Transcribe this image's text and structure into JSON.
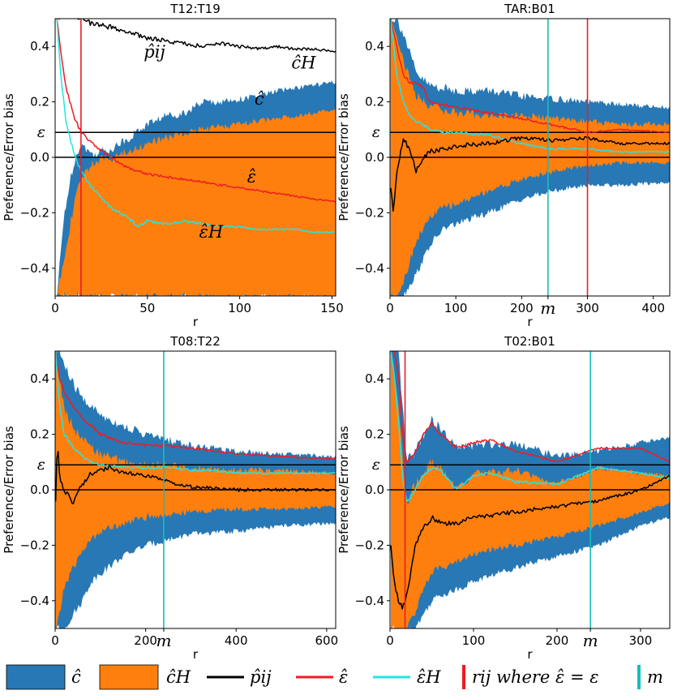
{
  "colors": {
    "c_hat": "#2878b5",
    "c_hat_H": "#ff7f0e",
    "p_ij": "#000000",
    "eps_hat": "#ed1c24",
    "eps_hat_H": "#22e5e5",
    "r_ij_line": "#ed1c24",
    "m_line": "#17bebb"
  },
  "legend": [
    {
      "kind": "patch",
      "color": "c_hat",
      "label": "ĉ"
    },
    {
      "kind": "patch",
      "color": "c_hat_H",
      "label": "ĉH"
    },
    {
      "kind": "line",
      "color": "p_ij",
      "label": "p̂ij"
    },
    {
      "kind": "line",
      "color": "eps_hat",
      "label": "ε̂"
    },
    {
      "kind": "line",
      "color": "eps_hat_H",
      "label": "ε̂H"
    },
    {
      "kind": "bar",
      "color": "r_ij_line",
      "label": "rij where ε̂ = ε"
    },
    {
      "kind": "bar",
      "color": "m_line",
      "label": "m"
    }
  ],
  "chart_data": [
    {
      "type": "line",
      "title": "T12:T19",
      "xlabel": "r",
      "ylabel": "Preference/Error bias",
      "xlim": [
        0,
        152
      ],
      "ylim": [
        -0.5,
        0.5
      ],
      "xticks": [
        0,
        50,
        100,
        150
      ],
      "yticks": [
        -0.4,
        -0.2,
        0.0,
        0.2,
        0.4
      ],
      "epsilon": 0.09,
      "epsilon_label": "ε",
      "vlines": [
        {
          "x": 14,
          "color": "r_ij_line"
        }
      ],
      "annotations": [
        {
          "text": "p̂ij",
          "x": 48,
          "y": 0.36
        },
        {
          "text": "ĉH",
          "x": 128,
          "y": 0.32
        },
        {
          "text": "ĉ",
          "x": 108,
          "y": 0.19
        },
        {
          "text": "ε̂",
          "x": 104,
          "y": -0.09
        },
        {
          "text": "ε̂H",
          "x": 78,
          "y": -0.29
        }
      ],
      "series": {
        "p_ij": {
          "x": [
            2,
            5,
            10,
            15,
            20,
            30,
            40,
            50,
            60,
            70,
            80,
            90,
            100,
            110,
            120,
            130,
            140,
            152
          ],
          "y": [
            0.5,
            0.52,
            0.51,
            0.5,
            0.48,
            0.47,
            0.45,
            0.43,
            0.42,
            0.41,
            0.4,
            0.41,
            0.4,
            0.39,
            0.4,
            0.39,
            0.39,
            0.38
          ]
        },
        "eps_hat": {
          "x": [
            1,
            3,
            6,
            10,
            14,
            20,
            30,
            40,
            45,
            50,
            60,
            70,
            80,
            90,
            100,
            110,
            120,
            130,
            140,
            152
          ],
          "y": [
            0.5,
            0.38,
            0.25,
            0.15,
            0.09,
            0.05,
            0.0,
            -0.04,
            -0.05,
            -0.06,
            -0.07,
            -0.08,
            -0.09,
            -0.1,
            -0.11,
            -0.12,
            -0.13,
            -0.14,
            -0.15,
            -0.16
          ]
        },
        "eps_hat_H": {
          "x": [
            1,
            3,
            6,
            10,
            14,
            20,
            30,
            40,
            45,
            50,
            60,
            70,
            80,
            90,
            100,
            110,
            120,
            130,
            140,
            152
          ],
          "y": [
            0.5,
            0.3,
            0.12,
            0.02,
            -0.05,
            -0.11,
            -0.18,
            -0.22,
            -0.25,
            -0.23,
            -0.24,
            -0.23,
            -0.24,
            -0.25,
            -0.25,
            -0.26,
            -0.26,
            -0.26,
            -0.27,
            -0.27
          ]
        },
        "c_hat_band": {
          "x": [
            1,
            5,
            10,
            14,
            20,
            30,
            40,
            50,
            60,
            70,
            80,
            90,
            100,
            110,
            120,
            130,
            140,
            152
          ],
          "lower": [
            -0.5,
            -0.5,
            -0.5,
            -0.5,
            -0.5,
            -0.5,
            -0.5,
            -0.5,
            -0.5,
            -0.5,
            -0.5,
            -0.5,
            -0.5,
            -0.5,
            -0.5,
            -0.5,
            -0.5,
            -0.5
          ],
          "upper": [
            -0.5,
            -0.2,
            -0.02,
            0.05,
            0.01,
            0.03,
            0.07,
            0.12,
            0.15,
            0.16,
            0.2,
            0.2,
            0.21,
            0.22,
            0.24,
            0.25,
            0.26,
            0.27
          ]
        },
        "c_hat_H_band": {
          "x": [
            1,
            5,
            10,
            14,
            20,
            30,
            40,
            50,
            60,
            70,
            80,
            90,
            100,
            110,
            120,
            130,
            140,
            152
          ],
          "lower": [
            -0.5,
            -0.5,
            -0.5,
            -0.5,
            -0.5,
            -0.5,
            -0.5,
            -0.5,
            -0.5,
            -0.5,
            -0.5,
            -0.5,
            -0.5,
            -0.5,
            -0.5,
            -0.5,
            -0.5,
            -0.5
          ],
          "upper": [
            -0.5,
            -0.35,
            -0.18,
            -0.08,
            -0.02,
            0.0,
            0.02,
            0.05,
            0.07,
            0.09,
            0.1,
            0.11,
            0.12,
            0.13,
            0.14,
            0.15,
            0.16,
            0.17
          ]
        }
      }
    },
    {
      "type": "line",
      "title": "TAR:B01",
      "xlabel": "r",
      "ylabel": "Preference/Error bias",
      "xlim": [
        0,
        425
      ],
      "ylim": [
        -0.5,
        0.5
      ],
      "xticks": [
        0,
        100,
        200,
        300,
        400
      ],
      "yticks": [
        -0.4,
        -0.2,
        0.0,
        0.2,
        0.4
      ],
      "epsilon": 0.09,
      "epsilon_label": "ε",
      "m_label": "m",
      "m_x": 240,
      "vlines": [
        {
          "x": 240,
          "color": "m_line"
        },
        {
          "x": 300,
          "color": "r_ij_line"
        }
      ],
      "series": {
        "p_ij": {
          "x": [
            1,
            5,
            10,
            15,
            20,
            25,
            30,
            40,
            50,
            60,
            80,
            100,
            150,
            200,
            250,
            300,
            350,
            425
          ],
          "y": [
            -0.1,
            -0.2,
            -0.05,
            0.0,
            0.07,
            0.05,
            0.02,
            -0.05,
            0.0,
            0.02,
            0.03,
            0.04,
            0.05,
            0.07,
            0.06,
            0.07,
            0.05,
            0.05
          ]
        },
        "eps_hat": {
          "x": [
            1,
            10,
            20,
            30,
            40,
            50,
            60,
            80,
            100,
            150,
            200,
            240,
            300,
            350,
            425
          ],
          "y": [
            0.5,
            0.4,
            0.3,
            0.27,
            0.27,
            0.25,
            0.2,
            0.19,
            0.18,
            0.16,
            0.14,
            0.12,
            0.09,
            0.1,
            0.09
          ]
        },
        "eps_hat_H": {
          "x": [
            1,
            10,
            20,
            30,
            40,
            50,
            60,
            80,
            100,
            150,
            200,
            240,
            300,
            350,
            425
          ],
          "y": [
            0.5,
            0.3,
            0.2,
            0.15,
            0.13,
            0.12,
            0.1,
            0.09,
            0.09,
            0.08,
            0.05,
            0.03,
            0.03,
            0.02,
            0.02
          ]
        },
        "c_hat_band": {
          "x": [
            1,
            10,
            20,
            40,
            60,
            80,
            100,
            150,
            200,
            250,
            300,
            350,
            425
          ],
          "lower": [
            -0.5,
            -0.5,
            -0.5,
            -0.42,
            -0.32,
            -0.26,
            -0.24,
            -0.2,
            -0.15,
            -0.12,
            -0.1,
            -0.1,
            -0.09
          ],
          "upper": [
            0.5,
            0.5,
            0.45,
            0.3,
            0.26,
            0.25,
            0.24,
            0.24,
            0.22,
            0.21,
            0.2,
            0.19,
            0.18
          ]
        },
        "c_hat_H_band": {
          "x": [
            1,
            10,
            20,
            40,
            60,
            80,
            100,
            150,
            200,
            250,
            300,
            350,
            425
          ],
          "lower": [
            -0.5,
            -0.5,
            -0.45,
            -0.3,
            -0.22,
            -0.18,
            -0.17,
            -0.12,
            -0.08,
            -0.05,
            -0.03,
            -0.02,
            -0.02
          ],
          "upper": [
            0.5,
            0.45,
            0.35,
            0.22,
            0.19,
            0.17,
            0.16,
            0.15,
            0.15,
            0.14,
            0.13,
            0.12,
            0.12
          ]
        }
      }
    },
    {
      "type": "line",
      "title": "T08:T22",
      "xlabel": "r",
      "ylabel": "Preference/Error bias",
      "xlim": [
        0,
        620
      ],
      "ylim": [
        -0.5,
        0.5
      ],
      "xticks": [
        0,
        200,
        400,
        600
      ],
      "yticks": [
        -0.4,
        -0.2,
        0.0,
        0.2,
        0.4
      ],
      "epsilon": 0.09,
      "epsilon_label": "ε",
      "m_label": "m",
      "m_x": 240,
      "vlines": [
        {
          "x": 240,
          "color": "m_line"
        }
      ],
      "series": {
        "p_ij": {
          "x": [
            1,
            5,
            10,
            20,
            30,
            40,
            50,
            60,
            80,
            100,
            120,
            150,
            200,
            250,
            300,
            400,
            500,
            620
          ],
          "y": [
            -0.05,
            0.17,
            0.05,
            0.0,
            -0.02,
            -0.05,
            0.0,
            0.02,
            0.06,
            0.07,
            0.08,
            0.06,
            0.05,
            0.03,
            0.01,
            0.0,
            0.0,
            0.0
          ]
        },
        "eps_hat": {
          "x": [
            1,
            10,
            20,
            40,
            60,
            80,
            100,
            150,
            200,
            250,
            300,
            350,
            400,
            500,
            620
          ],
          "y": [
            0.5,
            0.4,
            0.35,
            0.3,
            0.26,
            0.23,
            0.2,
            0.17,
            0.16,
            0.16,
            0.15,
            0.14,
            0.13,
            0.12,
            0.11
          ]
        },
        "eps_hat_H": {
          "x": [
            1,
            10,
            20,
            40,
            60,
            80,
            100,
            150,
            200,
            250,
            300,
            350,
            400,
            500,
            620
          ],
          "y": [
            0.5,
            0.3,
            0.2,
            0.15,
            0.12,
            0.1,
            0.09,
            0.08,
            0.08,
            0.08,
            0.07,
            0.07,
            0.06,
            0.06,
            0.06
          ]
        },
        "c_hat_band": {
          "x": [
            1,
            10,
            20,
            40,
            60,
            80,
            100,
            150,
            200,
            250,
            300,
            400,
            500,
            620
          ],
          "lower": [
            -0.5,
            -0.5,
            -0.5,
            -0.45,
            -0.4,
            -0.33,
            -0.3,
            -0.24,
            -0.2,
            -0.18,
            -0.16,
            -0.15,
            -0.13,
            -0.12
          ],
          "upper": [
            0.5,
            0.5,
            0.45,
            0.38,
            0.33,
            0.3,
            0.27,
            0.23,
            0.2,
            0.18,
            0.16,
            0.14,
            0.13,
            0.12
          ]
        },
        "c_hat_H_band": {
          "x": [
            1,
            10,
            20,
            40,
            60,
            80,
            100,
            150,
            200,
            250,
            300,
            400,
            500,
            620
          ],
          "lower": [
            -0.5,
            -0.45,
            -0.35,
            -0.28,
            -0.22,
            -0.18,
            -0.15,
            -0.12,
            -0.1,
            -0.09,
            -0.08,
            -0.07,
            -0.07,
            -0.06
          ]
        },
        "c_hat_H_band_upper": {
          "x": [
            1,
            10,
            20,
            40,
            60,
            80,
            100,
            150,
            200,
            250,
            300,
            400,
            500,
            620
          ],
          "upper": [
            0.5,
            0.4,
            0.3,
            0.22,
            0.18,
            0.15,
            0.13,
            0.1,
            0.09,
            0.09,
            0.08,
            0.07,
            0.07,
            0.06
          ]
        }
      }
    },
    {
      "type": "line",
      "title": "T02:B01",
      "xlabel": "r",
      "ylabel": "Preference/Error bias",
      "xlim": [
        0,
        335
      ],
      "ylim": [
        -0.5,
        0.5
      ],
      "xticks": [
        0,
        100,
        200,
        300
      ],
      "yticks": [
        -0.4,
        -0.2,
        0.0,
        0.2,
        0.4
      ],
      "epsilon": 0.09,
      "epsilon_label": "ε",
      "m_label": "m",
      "m_x": 240,
      "vlines": [
        {
          "x": 18,
          "color": "r_ij_line"
        },
        {
          "x": 240,
          "color": "m_line"
        }
      ],
      "series": {
        "p_ij": {
          "x": [
            1,
            5,
            10,
            15,
            20,
            25,
            30,
            40,
            50,
            60,
            80,
            100,
            150,
            200,
            250,
            300,
            335
          ],
          "y": [
            -0.2,
            -0.33,
            -0.4,
            -0.43,
            -0.38,
            -0.3,
            -0.2,
            -0.14,
            -0.1,
            -0.12,
            -0.12,
            -0.1,
            -0.08,
            -0.06,
            -0.04,
            0.0,
            0.05
          ]
        },
        "eps_hat": {
          "x": [
            1,
            5,
            10,
            15,
            20,
            30,
            40,
            50,
            60,
            80,
            100,
            120,
            150,
            200,
            250,
            300,
            335
          ],
          "y": [
            0.5,
            0.5,
            0.42,
            0.2,
            0.1,
            0.13,
            0.2,
            0.24,
            0.2,
            0.15,
            0.17,
            0.18,
            0.14,
            0.1,
            0.15,
            0.15,
            0.1
          ]
        },
        "eps_hat_H": {
          "x": [
            1,
            5,
            10,
            15,
            20,
            30,
            40,
            50,
            60,
            80,
            100,
            120,
            150,
            200,
            250,
            300,
            335
          ],
          "y": [
            0.5,
            0.42,
            0.25,
            0.05,
            -0.05,
            0.0,
            0.05,
            0.08,
            0.07,
            0.0,
            0.05,
            0.06,
            0.03,
            0.02,
            0.08,
            0.06,
            0.04
          ]
        },
        "c_hat_band": {
          "x": [
            1,
            10,
            20,
            30,
            40,
            50,
            60,
            80,
            100,
            150,
            200,
            250,
            300,
            335
          ],
          "lower": [
            -0.5,
            -0.5,
            -0.5,
            -0.5,
            -0.45,
            -0.4,
            -0.38,
            -0.36,
            -0.33,
            -0.28,
            -0.24,
            -0.2,
            -0.13,
            -0.1
          ],
          "upper": [
            0.5,
            0.5,
            0.1,
            0.14,
            0.2,
            0.25,
            0.22,
            0.15,
            0.16,
            0.17,
            0.12,
            0.14,
            0.17,
            0.19
          ]
        },
        "c_hat_H_band": {
          "x": [
            1,
            10,
            20,
            30,
            40,
            50,
            60,
            80,
            100,
            150,
            200,
            250,
            300,
            335
          ],
          "lower": [
            -0.5,
            -0.5,
            -0.5,
            -0.45,
            -0.35,
            -0.3,
            -0.28,
            -0.26,
            -0.23,
            -0.2,
            -0.17,
            -0.13,
            -0.08,
            -0.05
          ],
          "upper": [
            0.5,
            0.3,
            -0.05,
            0.02,
            0.06,
            0.1,
            0.08,
            0.0,
            0.06,
            0.07,
            0.02,
            0.08,
            0.06,
            0.05
          ]
        }
      }
    }
  ]
}
